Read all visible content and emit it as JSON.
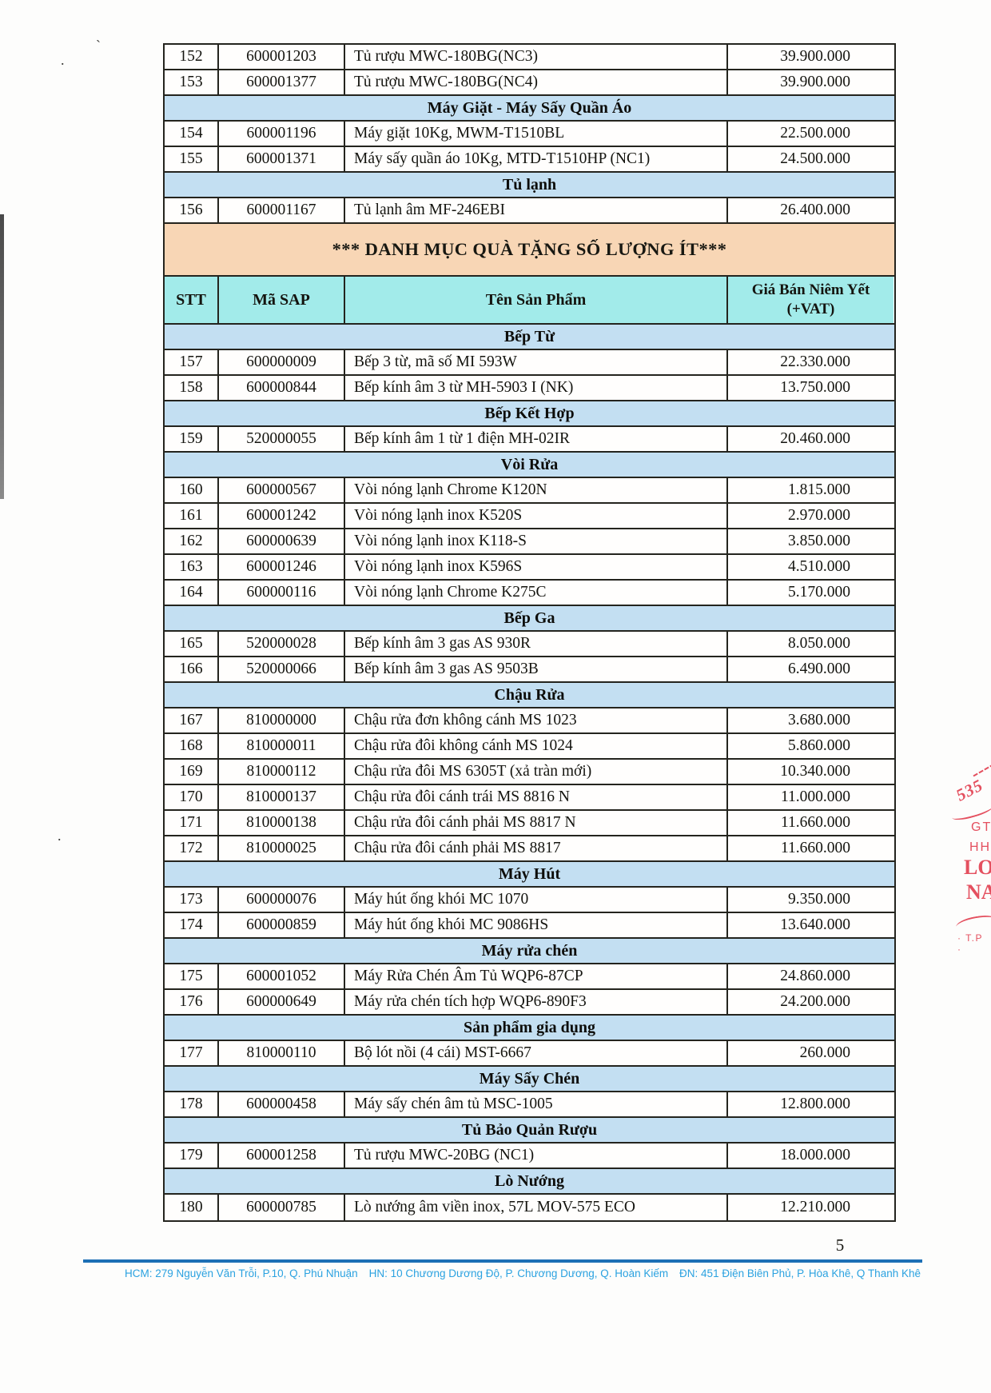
{
  "page": {
    "number": "5"
  },
  "colors": {
    "section_band_blue": "#C3DFF2",
    "header_cyan": "#A2EBEA",
    "banner_salmon": "#F8D6B5",
    "footer_text_blue": "#2BA2E0",
    "footer_rule_blue": "#1C6FB5",
    "stamp_red": "#E4505F"
  },
  "table": {
    "headers": {
      "stt": "STT",
      "sap": "Mã SAP",
      "name": "Tên Sản Phẩm",
      "price": "Giá Bán Niêm Yết (+VAT)"
    },
    "rows": [
      {
        "type": "item",
        "stt": "152",
        "sap": "600001203",
        "name": "Tủ rượu MWC-180BG(NC3)",
        "price": "39.900.000"
      },
      {
        "type": "item",
        "stt": "153",
        "sap": "600001377",
        "name": "Tủ rượu MWC-180BG(NC4)",
        "price": "39.900.000"
      },
      {
        "type": "section",
        "label": "Máy Giặt - Máy Sấy Quần Áo"
      },
      {
        "type": "item",
        "stt": "154",
        "sap": "600001196",
        "name": "Máy giặt 10Kg, MWM-T1510BL",
        "price": "22.500.000"
      },
      {
        "type": "item",
        "stt": "155",
        "sap": "600001371",
        "name": "Máy sấy quần áo 10Kg, MTD-T1510HP (NC1)",
        "price": "24.500.000"
      },
      {
        "type": "section",
        "label": "Tủ lạnh"
      },
      {
        "type": "item",
        "stt": "156",
        "sap": "600001167",
        "name": "Tủ lạnh âm MF-246EBI",
        "price": "26.400.000"
      },
      {
        "type": "banner",
        "label": "*** DANH MỤC QUÀ TẶNG SỐ LƯỢNG ÍT***"
      },
      {
        "type": "header"
      },
      {
        "type": "section",
        "label": "Bếp Từ"
      },
      {
        "type": "item",
        "stt": "157",
        "sap": "600000009",
        "name": "Bếp 3 từ, mã số MI 593W",
        "price": "22.330.000"
      },
      {
        "type": "item",
        "stt": "158",
        "sap": "600000844",
        "name": "Bếp kính âm 3 từ MH-5903 I (NK)",
        "price": "13.750.000"
      },
      {
        "type": "section",
        "label": "Bếp Kết Hợp"
      },
      {
        "type": "item",
        "stt": "159",
        "sap": "520000055",
        "name": "Bếp kính âm 1 từ 1 điện MH-02IR",
        "price": "20.460.000"
      },
      {
        "type": "section",
        "label": "Vòi Rửa"
      },
      {
        "type": "item",
        "stt": "160",
        "sap": "600000567",
        "name": "Vòi nóng lạnh Chrome K120N",
        "price": "1.815.000"
      },
      {
        "type": "item",
        "stt": "161",
        "sap": "600001242",
        "name": "Vòi nóng lạnh inox K520S",
        "price": "2.970.000"
      },
      {
        "type": "item",
        "stt": "162",
        "sap": "600000639",
        "name": "Vòi nóng lạnh inox K118-S",
        "price": "3.850.000"
      },
      {
        "type": "item",
        "stt": "163",
        "sap": "600001246",
        "name": "Vòi nóng lạnh inox K596S",
        "price": "4.510.000"
      },
      {
        "type": "item",
        "stt": "164",
        "sap": "600000116",
        "name": "Vòi nóng lạnh Chrome K275C",
        "price": "5.170.000"
      },
      {
        "type": "section",
        "label": "Bếp Ga"
      },
      {
        "type": "item",
        "stt": "165",
        "sap": "520000028",
        "name": "Bếp kính âm 3 gas AS 930R",
        "price": "8.050.000"
      },
      {
        "type": "item",
        "stt": "166",
        "sap": "520000066",
        "name": "Bếp kính âm 3 gas AS 9503B",
        "price": "6.490.000"
      },
      {
        "type": "section",
        "label": "Chậu Rửa"
      },
      {
        "type": "item",
        "stt": "167",
        "sap": "810000000",
        "name": "Chậu rửa đơn không cánh MS 1023",
        "price": "3.680.000"
      },
      {
        "type": "item",
        "stt": "168",
        "sap": "810000011",
        "name": "Chậu rửa đôi không cánh MS 1024",
        "price": "5.860.000"
      },
      {
        "type": "item",
        "stt": "169",
        "sap": "810000112",
        "name": "Chậu rửa đôi MS 6305T (xả tràn mới)",
        "price": "10.340.000"
      },
      {
        "type": "item",
        "stt": "170",
        "sap": "810000137",
        "name": "Chậu rửa đôi cánh trái MS 8816 N",
        "price": "11.000.000"
      },
      {
        "type": "item",
        "stt": "171",
        "sap": "810000138",
        "name": "Chậu rửa đôi cánh phải MS 8817 N",
        "price": "11.660.000"
      },
      {
        "type": "item",
        "stt": "172",
        "sap": "810000025",
        "name": "Chậu rửa đôi cánh phải MS 8817",
        "price": "11.660.000"
      },
      {
        "type": "section",
        "label": "Máy Hút"
      },
      {
        "type": "item",
        "stt": "173",
        "sap": "600000076",
        "name": "Máy hút ống khói MC 1070",
        "price": "9.350.000"
      },
      {
        "type": "item",
        "stt": "174",
        "sap": "600000859",
        "name": "Máy hút ống khói MC 9086HS",
        "price": "13.640.000"
      },
      {
        "type": "section",
        "label": "Máy rửa chén"
      },
      {
        "type": "item",
        "stt": "175",
        "sap": "600001052",
        "name": "Máy Rửa Chén Âm Tủ WQP6-87CP",
        "price": "24.860.000"
      },
      {
        "type": "item",
        "stt": "176",
        "sap": "600000649",
        "name": "Máy rửa chén tích hợp WQP6-890F3",
        "price": "24.200.000"
      },
      {
        "type": "section",
        "label": "Sản phẩm gia dụng"
      },
      {
        "type": "item",
        "stt": "177",
        "sap": "810000110",
        "name": "Bộ lót nồi (4 cái) MST-6667",
        "price": "260.000"
      },
      {
        "type": "section",
        "label": "Máy Sấy Chén"
      },
      {
        "type": "item",
        "stt": "178",
        "sap": "600000458",
        "name": "Máy sấy chén âm tủ MSC-1005",
        "price": "12.800.000"
      },
      {
        "type": "section",
        "label": "Tủ Bảo Quản Rượu"
      },
      {
        "type": "item",
        "stt": "179",
        "sap": "600001258",
        "name": "Tủ rượu MWC-20BG (NC1)",
        "price": "18.000.000"
      },
      {
        "type": "section",
        "label": "Lò Nướng"
      },
      {
        "type": "item",
        "stt": "180",
        "sap": "600000785",
        "name": "Lò nướng âm viền inox, 57L MOV-575 ECO",
        "price": "12.210.000"
      }
    ]
  },
  "footer": {
    "addresses": [
      "HCM: 279 Nguyễn Văn Trỗi, P.10, Q. Phú Nhuận",
      "HN: 10 Chương Dương Độ, P. Chương Dương, Q. Hoàn Kiếm",
      "ĐN: 451 Điện Biên Phủ, P. Hòa Khê, Q Thanh Khê"
    ]
  },
  "stamp": {
    "fragments": {
      "code": "535",
      "gt": "GT",
      "hh": "HH",
      "lo": "LO",
      "na": "NA",
      "tp": "T.P"
    }
  },
  "artifacts": {
    "tick": "`",
    "dot1": ".",
    "dot2": "."
  }
}
